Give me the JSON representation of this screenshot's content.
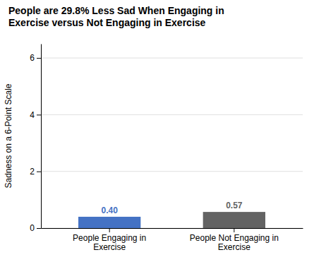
{
  "chart_data": {
    "type": "bar",
    "title": "People are 29.8% Less Sad When Engaging in\nExercise versus Not Engaging in Exercise",
    "ylabel": "Sadness on a 6-Point Scale",
    "categories": [
      "People Engaging in\nExercise",
      "People Not Engaging in\nExercise"
    ],
    "values": [
      0.4,
      0.57
    ],
    "value_labels": [
      "0.40",
      "0.57"
    ],
    "data_labels": true,
    "colors": [
      "#4472C4",
      "#636363"
    ],
    "ylim": [
      0,
      6.5
    ],
    "yticks": [
      0,
      2,
      4,
      6
    ],
    "grid": true
  }
}
